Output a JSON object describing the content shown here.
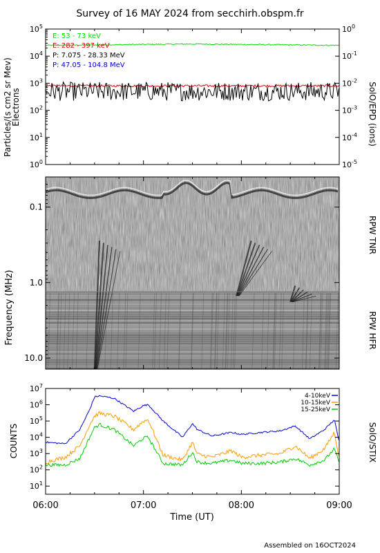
{
  "header": {
    "title": "Survey of 16 MAY 2024 from secchirh.obspm.fr",
    "footer": "Assembled on 16OCT2024"
  },
  "x_axis": {
    "label": "Time (UT)",
    "ticks": [
      "06:00",
      "07:00",
      "08:00",
      "09:00"
    ],
    "range_hours": [
      6,
      9
    ]
  },
  "epd": {
    "ylabel_left": "Particles/(s cm2 sr Mev)",
    "ylabel_left2": "Electrons",
    "ylabel_right": "SolO/EPD (ions)",
    "left_ticks": [
      "10^0",
      "10^1",
      "10^2",
      "10^3",
      "10^4",
      "10^5"
    ],
    "right_ticks": [
      "10^-5",
      "10^-4",
      "10^-3",
      "10^-2",
      "10^-1",
      "10^0"
    ],
    "legend": [
      {
        "label": "E: 53 - 73 keV",
        "color": "#00dd00"
      },
      {
        "label": "E: 282 - 397 keV",
        "color": "#dd0000"
      },
      {
        "label": "P: 7.075 - 28.33 MeV",
        "color": "#000000"
      },
      {
        "label": "P: 47.05 - 104.8 MeV",
        "color": "#0000cc"
      }
    ]
  },
  "rpw": {
    "ylabel": "Frequency (MHz)",
    "tnr_label": "RPW TNR",
    "hfr_label": "RPW HFR",
    "ticks": [
      "0.1",
      "1.0",
      "10.0"
    ]
  },
  "stix": {
    "ylabel": "COUNTS",
    "right_label": "SolO/STIX",
    "ticks": [
      "10^1",
      "10^2",
      "10^3",
      "10^4",
      "10^5",
      "10^6",
      "10^7"
    ],
    "legend": [
      {
        "label": "4-10keV",
        "color": "#0000dd"
      },
      {
        "label": "10-15keV",
        "color": "#ff9900"
      },
      {
        "label": "15-25keV",
        "color": "#00cc00"
      }
    ]
  },
  "chart_data": [
    {
      "type": "line",
      "panel": "SolO/EPD",
      "x_unit": "hours UT",
      "xlim": [
        6,
        9
      ],
      "ylim_log10": [
        0,
        5
      ],
      "y_right_log10": [
        -5,
        0
      ],
      "series": [
        {
          "name": "E: 53 - 73 keV",
          "x": [
            6.0,
            6.5,
            7.0,
            7.5,
            8.0,
            8.5,
            9.0
          ],
          "values": [
            25000,
            26000,
            27000,
            28000,
            27000,
            26000,
            25000
          ]
        },
        {
          "name": "E: 282 - 397 keV",
          "x": [
            6.0,
            6.5,
            7.0,
            7.5,
            8.0,
            8.5,
            9.0
          ],
          "values": [
            800,
            800,
            800,
            800,
            800,
            800,
            800
          ]
        },
        {
          "name": "P: 7.075 - 28.33 MeV",
          "x": [
            6.0,
            6.5,
            7.0,
            7.5,
            8.0,
            8.5,
            9.0
          ],
          "values": [
            500,
            500,
            500,
            500,
            500,
            500,
            500
          ]
        }
      ]
    },
    {
      "type": "heatmap",
      "panel": "RPW TNR/HFR",
      "x_unit": "hours UT",
      "xlim": [
        6,
        9
      ],
      "y_unit": "MHz",
      "ylim_log": [
        0.04,
        14
      ],
      "tnr_hfr_boundary_mhz": 0.6,
      "bursts": [
        {
          "start": 6.55,
          "freq_start_mhz": 0.28,
          "end": 6.5,
          "freq_end_mhz": 14
        },
        {
          "start": 8.1,
          "freq_start_mhz": 0.28,
          "end": 7.95,
          "freq_end_mhz": 1.5
        },
        {
          "start": 8.55,
          "freq_start_mhz": 1.1,
          "end": 8.5,
          "freq_end_mhz": 1.8
        }
      ]
    },
    {
      "type": "line",
      "panel": "SolO/STIX",
      "x_unit": "hours UT",
      "xlim": [
        6,
        9
      ],
      "ylim_log10": [
        0.5,
        7
      ],
      "series": [
        {
          "name": "4-10keV",
          "x": [
            6.0,
            6.2,
            6.35,
            6.45,
            6.5,
            6.55,
            6.7,
            6.9,
            7.0,
            7.05,
            7.2,
            7.4,
            7.5,
            7.55,
            7.7,
            7.9,
            8.0,
            8.2,
            8.4,
            8.55,
            8.7,
            8.85,
            8.95,
            9.0
          ],
          "values": [
            5000,
            4000,
            30000,
            500000,
            3000000,
            3500000,
            2500000,
            400000,
            900000,
            1000000,
            100000,
            10000,
            70000,
            30000,
            12000,
            20000,
            15000,
            20000,
            25000,
            50000,
            8000,
            30000,
            120000,
            5000
          ]
        },
        {
          "name": "10-15keV",
          "x": [
            6.0,
            6.2,
            6.35,
            6.45,
            6.5,
            6.55,
            6.7,
            6.9,
            7.0,
            7.05,
            7.2,
            7.4,
            7.5,
            7.55,
            7.7,
            7.9,
            8.0,
            8.2,
            8.4,
            8.55,
            8.7,
            8.85,
            8.95,
            9.0
          ],
          "values": [
            300,
            600,
            3000,
            60000,
            200000,
            300000,
            200000,
            30000,
            100000,
            120000,
            800,
            400,
            5000,
            900,
            600,
            1500,
            600,
            800,
            1000,
            3000,
            500,
            2000,
            20000,
            600
          ]
        },
        {
          "name": "15-25keV",
          "x": [
            6.0,
            6.2,
            6.35,
            6.45,
            6.5,
            6.55,
            6.7,
            6.9,
            7.0,
            7.05,
            7.2,
            7.4,
            7.5,
            7.55,
            7.7,
            7.9,
            8.0,
            8.2,
            8.4,
            8.55,
            8.7,
            8.85,
            8.95,
            9.0
          ],
          "values": [
            200,
            200,
            500,
            10000,
            40000,
            60000,
            30000,
            3000,
            9000,
            10000,
            250,
            200,
            1200,
            300,
            250,
            400,
            250,
            250,
            300,
            500,
            200,
            400,
            2000,
            250
          ]
        }
      ]
    }
  ]
}
